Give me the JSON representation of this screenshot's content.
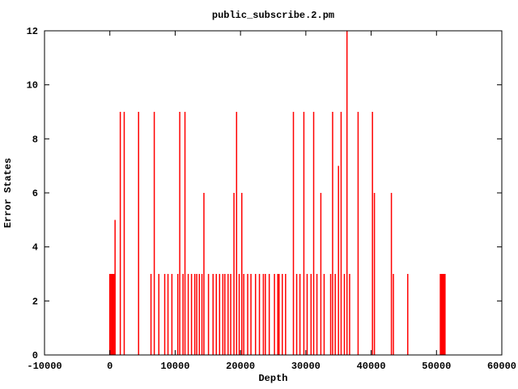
{
  "chart_data": {
    "type": "impulses",
    "title": "public_subscribe.2.pm",
    "xlabel": "Depth",
    "ylabel": "Error States",
    "xlim": [
      -10000,
      60000
    ],
    "ylim": [
      0,
      12
    ],
    "x_ticks": [
      -10000,
      0,
      10000,
      20000,
      30000,
      40000,
      50000,
      60000
    ],
    "y_ticks": [
      0,
      2,
      4,
      6,
      8,
      10,
      12
    ],
    "grid": false,
    "legend": null,
    "line_color": "#ff0000",
    "axis_color": "#000000",
    "background_color": "#ffffff",
    "points": [
      [
        800,
        5
      ],
      [
        1600,
        9
      ],
      [
        2200,
        9
      ],
      [
        4400,
        9
      ],
      [
        6300,
        3
      ],
      [
        6800,
        9
      ],
      [
        7500,
        3
      ],
      [
        8400,
        3
      ],
      [
        8900,
        3
      ],
      [
        9500,
        3
      ],
      [
        10400,
        3
      ],
      [
        10700,
        9
      ],
      [
        11200,
        3
      ],
      [
        11500,
        9
      ],
      [
        12000,
        3
      ],
      [
        12500,
        3
      ],
      [
        13000,
        3
      ],
      [
        13300,
        3
      ],
      [
        13700,
        3
      ],
      [
        14100,
        3
      ],
      [
        14400,
        6
      ],
      [
        15100,
        3
      ],
      [
        15800,
        3
      ],
      [
        16300,
        3
      ],
      [
        16800,
        3
      ],
      [
        17300,
        3
      ],
      [
        17600,
        3
      ],
      [
        18100,
        3
      ],
      [
        18500,
        3
      ],
      [
        19000,
        6
      ],
      [
        19400,
        9
      ],
      [
        19800,
        3
      ],
      [
        20200,
        6
      ],
      [
        20500,
        3
      ],
      [
        21100,
        3
      ],
      [
        21600,
        3
      ],
      [
        22300,
        3
      ],
      [
        22900,
        3
      ],
      [
        23500,
        3
      ],
      [
        23800,
        3
      ],
      [
        24400,
        3
      ],
      [
        25200,
        3
      ],
      [
        25700,
        3
      ],
      [
        25900,
        3
      ],
      [
        26400,
        3
      ],
      [
        26900,
        3
      ],
      [
        28100,
        9
      ],
      [
        28600,
        3
      ],
      [
        29100,
        3
      ],
      [
        29700,
        9
      ],
      [
        30200,
        3
      ],
      [
        30800,
        3
      ],
      [
        31200,
        9
      ],
      [
        31700,
        3
      ],
      [
        32300,
        6
      ],
      [
        32800,
        3
      ],
      [
        33800,
        3
      ],
      [
        34100,
        9
      ],
      [
        34500,
        3
      ],
      [
        35000,
        7
      ],
      [
        35400,
        9
      ],
      [
        35900,
        3
      ],
      [
        36300,
        12
      ],
      [
        36700,
        3
      ],
      [
        38000,
        9
      ],
      [
        40200,
        9
      ],
      [
        40500,
        6
      ],
      [
        43100,
        6
      ],
      [
        43400,
        3
      ],
      [
        45600,
        3
      ]
    ],
    "thick_bars": [
      {
        "x0": -100,
        "x1": 850,
        "h": 3
      },
      {
        "x0": 50500,
        "x1": 51400,
        "h": 3
      }
    ]
  }
}
